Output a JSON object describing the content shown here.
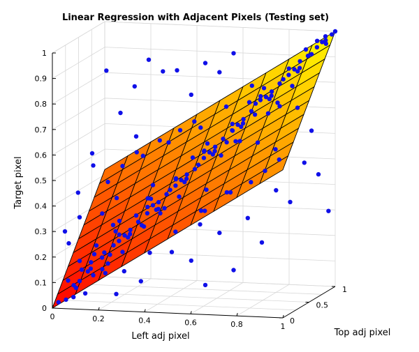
{
  "chart_data": {
    "type": "scatter",
    "subtype": "3d-scatter-with-regression-plane",
    "title": "Linear Regression with Adjacent Pixels (Testing set)",
    "xlabel": "Left adj pixel",
    "ylabel": "Top adj pixel",
    "zlabel": "Target pixel",
    "xlim": [
      0,
      1
    ],
    "ylim": [
      0,
      1
    ],
    "zlim": [
      0,
      1
    ],
    "xticks": [
      "0",
      "0.2",
      "0.4",
      "0.6",
      "0.8",
      "1"
    ],
    "yticks": [
      "0",
      "0.5",
      "1"
    ],
    "zticks": [
      "0",
      "0.1",
      "0.2",
      "0.3",
      "0.4",
      "0.5",
      "0.6",
      "0.7",
      "0.8",
      "0.9",
      "1"
    ],
    "grid": true,
    "colormap": "autumn",
    "colors": {
      "points": "#1010e8",
      "plane_low": "#ff0000",
      "plane_high": "#ffff00"
    },
    "regression_plane": {
      "equation": "z = a*x + b*y + c",
      "a": 0.58,
      "b": 0.42,
      "c": 0.0,
      "x_range": [
        0,
        1
      ],
      "y_range": [
        0,
        1
      ],
      "grid_divisions": 10
    },
    "points": [
      [
        0.02,
        0.03,
        0.02
      ],
      [
        0.05,
        0.04,
        0.03
      ],
      [
        0.08,
        0.1,
        0.07
      ],
      [
        0.1,
        0.08,
        0.1
      ],
      [
        0.12,
        0.15,
        0.13
      ],
      [
        0.15,
        0.12,
        0.12
      ],
      [
        0.18,
        0.2,
        0.2
      ],
      [
        0.2,
        0.22,
        0.19
      ],
      [
        0.22,
        0.2,
        0.23
      ],
      [
        0.25,
        0.28,
        0.26
      ],
      [
        0.28,
        0.25,
        0.27
      ],
      [
        0.3,
        0.32,
        0.31
      ],
      [
        0.32,
        0.3,
        0.3
      ],
      [
        0.35,
        0.38,
        0.37
      ],
      [
        0.38,
        0.35,
        0.36
      ],
      [
        0.4,
        0.42,
        0.41
      ],
      [
        0.42,
        0.4,
        0.43
      ],
      [
        0.45,
        0.48,
        0.46
      ],
      [
        0.48,
        0.45,
        0.47
      ],
      [
        0.5,
        0.52,
        0.5
      ],
      [
        0.52,
        0.5,
        0.52
      ],
      [
        0.55,
        0.58,
        0.56
      ],
      [
        0.58,
        0.55,
        0.57
      ],
      [
        0.6,
        0.62,
        0.61
      ],
      [
        0.62,
        0.6,
        0.6
      ],
      [
        0.65,
        0.68,
        0.66
      ],
      [
        0.68,
        0.65,
        0.67
      ],
      [
        0.7,
        0.72,
        0.71
      ],
      [
        0.72,
        0.7,
        0.7
      ],
      [
        0.75,
        0.78,
        0.76
      ],
      [
        0.78,
        0.75,
        0.77
      ],
      [
        0.8,
        0.82,
        0.81
      ],
      [
        0.82,
        0.8,
        0.83
      ],
      [
        0.85,
        0.88,
        0.86
      ],
      [
        0.88,
        0.85,
        0.87
      ],
      [
        0.9,
        0.92,
        0.91
      ],
      [
        0.92,
        0.9,
        0.92
      ],
      [
        0.95,
        0.97,
        0.96
      ],
      [
        0.97,
        0.95,
        0.97
      ],
      [
        1.0,
        1.0,
        1.0
      ],
      [
        0.99,
        0.98,
        0.99
      ],
      [
        0.96,
        0.99,
        0.98
      ],
      [
        0.93,
        0.96,
        0.94
      ],
      [
        0.87,
        0.9,
        0.89
      ],
      [
        0.83,
        0.86,
        0.84
      ],
      [
        0.77,
        0.8,
        0.78
      ],
      [
        0.73,
        0.76,
        0.75
      ],
      [
        0.67,
        0.7,
        0.68
      ],
      [
        0.63,
        0.66,
        0.64
      ],
      [
        0.57,
        0.6,
        0.58
      ],
      [
        0.53,
        0.56,
        0.54
      ],
      [
        0.47,
        0.5,
        0.48
      ],
      [
        0.43,
        0.46,
        0.44
      ],
      [
        0.37,
        0.4,
        0.38
      ],
      [
        0.33,
        0.36,
        0.34
      ],
      [
        0.27,
        0.3,
        0.28
      ],
      [
        0.23,
        0.26,
        0.24
      ],
      [
        0.17,
        0.2,
        0.18
      ],
      [
        0.13,
        0.16,
        0.14
      ],
      [
        0.07,
        0.1,
        0.08
      ],
      [
        0.1,
        0.12,
        0.14
      ],
      [
        0.2,
        0.18,
        0.16
      ],
      [
        0.3,
        0.28,
        0.34
      ],
      [
        0.4,
        0.38,
        0.36
      ],
      [
        0.5,
        0.48,
        0.55
      ],
      [
        0.6,
        0.58,
        0.55
      ],
      [
        0.7,
        0.68,
        0.75
      ],
      [
        0.8,
        0.78,
        0.74
      ],
      [
        0.9,
        0.88,
        0.94
      ],
      [
        0.45,
        0.44,
        0.4
      ],
      [
        0.35,
        0.34,
        0.4
      ],
      [
        0.25,
        0.24,
        0.2
      ],
      [
        0.15,
        0.14,
        0.2
      ],
      [
        0.55,
        0.54,
        0.6
      ],
      [
        0.65,
        0.64,
        0.6
      ],
      [
        0.75,
        0.74,
        0.8
      ],
      [
        0.85,
        0.84,
        0.8
      ],
      [
        0.12,
        0.1,
        0.05
      ],
      [
        0.22,
        0.24,
        0.28
      ],
      [
        0.32,
        0.34,
        0.29
      ],
      [
        0.05,
        0.08,
        0.1
      ],
      [
        0.08,
        0.05,
        0.04
      ],
      [
        0.14,
        0.12,
        0.17
      ],
      [
        0.18,
        0.16,
        0.14
      ],
      [
        0.24,
        0.22,
        0.27
      ],
      [
        0.26,
        0.3,
        0.25
      ],
      [
        0.34,
        0.32,
        0.37
      ],
      [
        0.36,
        0.4,
        0.35
      ],
      [
        0.44,
        0.42,
        0.47
      ],
      [
        0.46,
        0.5,
        0.45
      ],
      [
        0.54,
        0.52,
        0.57
      ],
      [
        0.56,
        0.6,
        0.55
      ],
      [
        0.64,
        0.62,
        0.67
      ],
      [
        0.66,
        0.7,
        0.65
      ],
      [
        0.74,
        0.72,
        0.77
      ],
      [
        0.76,
        0.8,
        0.75
      ],
      [
        0.84,
        0.82,
        0.87
      ],
      [
        0.86,
        0.9,
        0.85
      ],
      [
        0.94,
        0.92,
        0.97
      ],
      [
        0.96,
        1.0,
        0.95
      ],
      [
        0.3,
        0.05,
        0.15
      ],
      [
        0.4,
        0.1,
        0.22
      ],
      [
        0.5,
        0.15,
        0.3
      ],
      [
        0.6,
        0.2,
        0.38
      ],
      [
        0.7,
        0.25,
        0.45
      ],
      [
        0.2,
        0.4,
        0.3
      ],
      [
        0.3,
        0.5,
        0.38
      ],
      [
        0.4,
        0.6,
        0.45
      ],
      [
        0.5,
        0.7,
        0.55
      ],
      [
        0.6,
        0.8,
        0.62
      ],
      [
        0.05,
        0.3,
        0.15
      ],
      [
        0.1,
        0.4,
        0.2
      ],
      [
        0.15,
        0.5,
        0.27
      ],
      [
        0.08,
        0.6,
        0.3
      ],
      [
        0.12,
        0.7,
        0.35
      ],
      [
        0.9,
        0.3,
        0.62
      ],
      [
        0.8,
        0.4,
        0.63
      ],
      [
        0.7,
        0.5,
        0.62
      ],
      [
        0.95,
        0.5,
        0.76
      ],
      [
        0.85,
        0.6,
        0.75
      ],
      [
        0.1,
        0.9,
        0.45
      ],
      [
        0.2,
        0.85,
        0.5
      ],
      [
        0.3,
        0.9,
        0.55
      ],
      [
        0.4,
        0.95,
        0.63
      ],
      [
        0.15,
        0.95,
        0.5
      ],
      [
        0.9,
        0.1,
        0.56
      ],
      [
        0.95,
        0.15,
        0.6
      ],
      [
        0.85,
        0.05,
        0.52
      ],
      [
        0.75,
        0.1,
        0.47
      ],
      [
        0.65,
        0.05,
        0.4
      ],
      [
        0.35,
        0.9,
        0.6
      ],
      [
        0.45,
        0.85,
        0.62
      ],
      [
        0.55,
        0.9,
        0.7
      ],
      [
        0.65,
        0.95,
        0.78
      ],
      [
        0.25,
        0.95,
        0.55
      ],
      [
        0.6,
        0.3,
        0.45
      ],
      [
        0.4,
        0.3,
        0.35
      ],
      [
        0.3,
        0.6,
        0.42
      ],
      [
        0.7,
        0.8,
        0.73
      ],
      [
        0.8,
        0.6,
        0.72
      ],
      [
        0.25,
        0.12,
        0.05
      ],
      [
        0.35,
        0.15,
        0.1
      ],
      [
        0.45,
        0.3,
        0.2
      ],
      [
        0.55,
        0.4,
        0.3
      ],
      [
        0.15,
        0.35,
        0.1
      ],
      [
        0.05,
        0.02,
        0.3
      ],
      [
        0.1,
        0.05,
        0.45
      ],
      [
        0.15,
        0.1,
        0.6
      ],
      [
        0.2,
        0.15,
        0.92
      ],
      [
        0.35,
        0.3,
        0.95
      ],
      [
        0.4,
        0.35,
        0.9
      ],
      [
        0.5,
        0.45,
        0.8
      ],
      [
        0.45,
        0.4,
        0.9
      ],
      [
        0.55,
        0.5,
        0.92
      ],
      [
        0.3,
        0.25,
        0.85
      ],
      [
        0.65,
        0.6,
        0.95
      ],
      [
        0.25,
        0.2,
        0.75
      ],
      [
        0.6,
        0.55,
        0.88
      ],
      [
        0.15,
        0.12,
        0.55
      ],
      [
        0.3,
        0.28,
        0.65
      ],
      [
        0.7,
        0.65,
        0.3
      ],
      [
        0.6,
        0.55,
        0.25
      ],
      [
        0.5,
        0.45,
        0.15
      ],
      [
        0.8,
        0.75,
        0.4
      ],
      [
        0.9,
        0.85,
        0.5
      ],
      [
        0.95,
        0.9,
        0.45
      ],
      [
        0.85,
        0.8,
        0.35
      ],
      [
        0.75,
        0.7,
        0.2
      ],
      [
        0.65,
        0.6,
        0.1
      ],
      [
        0.55,
        0.5,
        0.05
      ],
      [
        0.98,
        0.96,
        0.3
      ],
      [
        0.92,
        0.9,
        0.62
      ],
      [
        0.1,
        0.08,
        0.35
      ],
      [
        0.06,
        0.05,
        0.25
      ],
      [
        0.2,
        0.18,
        0.48
      ]
    ]
  }
}
